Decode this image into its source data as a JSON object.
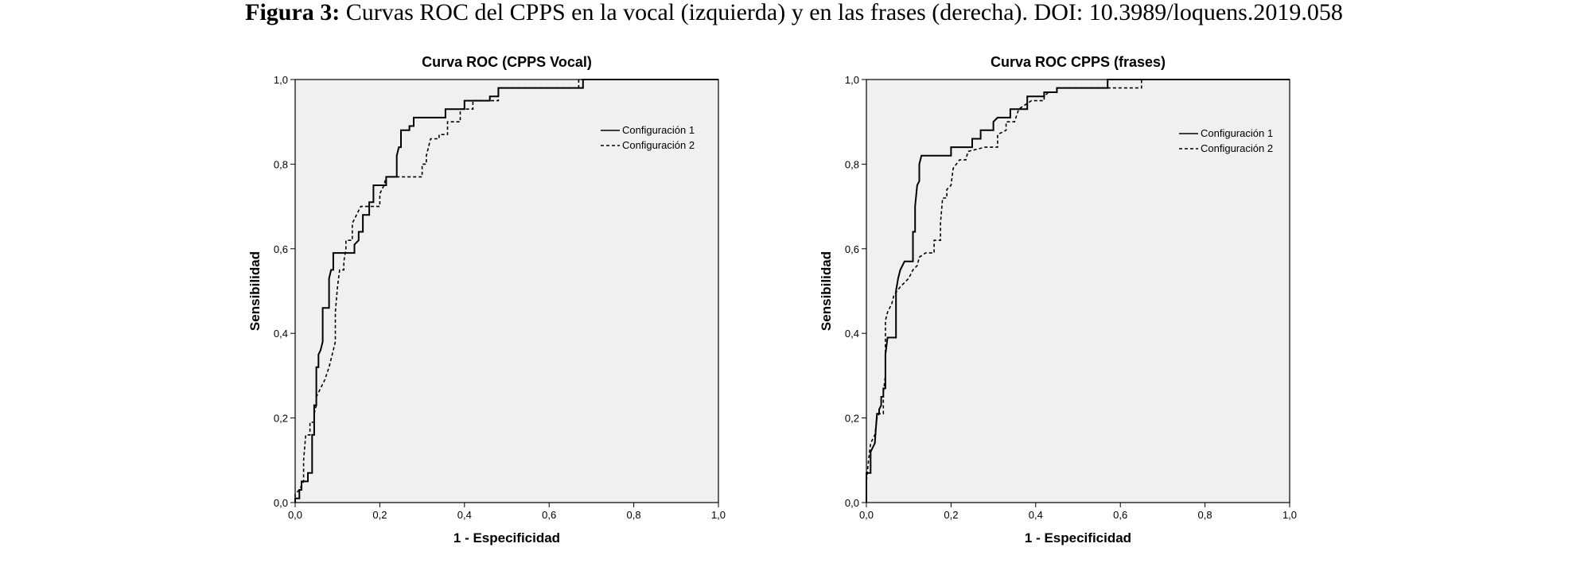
{
  "figure": {
    "label": "Figura 3:",
    "caption": "Curvas ROC del CPPS en la vocal (izquierda) y en las frases (derecha). DOI: 10.3989/loquens.2019.058"
  },
  "colors": {
    "plot_bg": "#f0f0f0",
    "line": "#000000",
    "frame": "#000000"
  },
  "chart_data": [
    {
      "type": "line",
      "title": "Curva ROC (CPPS Vocal)",
      "xlabel": "1 - Especificidad",
      "ylabel": "Sensibilidad",
      "xlim": [
        0,
        1
      ],
      "ylim": [
        0,
        1
      ],
      "xticks": [
        "0,0",
        "0,2",
        "0,4",
        "0,6",
        "0,8",
        "1,0"
      ],
      "yticks": [
        "0,0",
        "0,2",
        "0,4",
        "0,6",
        "0,8",
        "1,0"
      ],
      "grid": false,
      "legend_position": "top-right",
      "series": [
        {
          "name": "Configuración 1",
          "style": "solid",
          "points": [
            [
              0,
              0
            ],
            [
              0,
              0.01
            ],
            [
              0.01,
              0.01
            ],
            [
              0.01,
              0.03
            ],
            [
              0.015,
              0.03
            ],
            [
              0.015,
              0.05
            ],
            [
              0.03,
              0.05
            ],
            [
              0.03,
              0.07
            ],
            [
              0.04,
              0.07
            ],
            [
              0.04,
              0.16
            ],
            [
              0.045,
              0.16
            ],
            [
              0.045,
              0.23
            ],
            [
              0.05,
              0.23
            ],
            [
              0.05,
              0.32
            ],
            [
              0.055,
              0.32
            ],
            [
              0.055,
              0.35
            ],
            [
              0.06,
              0.36
            ],
            [
              0.065,
              0.38
            ],
            [
              0.065,
              0.46
            ],
            [
              0.08,
              0.46
            ],
            [
              0.08,
              0.53
            ],
            [
              0.085,
              0.55
            ],
            [
              0.09,
              0.55
            ],
            [
              0.09,
              0.59
            ],
            [
              0.14,
              0.59
            ],
            [
              0.14,
              0.61
            ],
            [
              0.15,
              0.62
            ],
            [
              0.15,
              0.64
            ],
            [
              0.16,
              0.64
            ],
            [
              0.16,
              0.68
            ],
            [
              0.175,
              0.68
            ],
            [
              0.175,
              0.71
            ],
            [
              0.185,
              0.71
            ],
            [
              0.185,
              0.75
            ],
            [
              0.215,
              0.75
            ],
            [
              0.215,
              0.77
            ],
            [
              0.24,
              0.77
            ],
            [
              0.24,
              0.82
            ],
            [
              0.245,
              0.84
            ],
            [
              0.25,
              0.84
            ],
            [
              0.25,
              0.88
            ],
            [
              0.27,
              0.88
            ],
            [
              0.27,
              0.89
            ],
            [
              0.28,
              0.89
            ],
            [
              0.28,
              0.91
            ],
            [
              0.355,
              0.91
            ],
            [
              0.355,
              0.93
            ],
            [
              0.4,
              0.93
            ],
            [
              0.4,
              0.95
            ],
            [
              0.46,
              0.95
            ],
            [
              0.46,
              0.96
            ],
            [
              0.48,
              0.96
            ],
            [
              0.48,
              0.98
            ],
            [
              0.68,
              0.98
            ],
            [
              0.68,
              1.0
            ],
            [
              1.0,
              1.0
            ]
          ]
        },
        {
          "name": "Configuración 2",
          "style": "dashed",
          "points": [
            [
              0,
              0
            ],
            [
              0,
              0.02
            ],
            [
              0.01,
              0.03
            ],
            [
              0.02,
              0.05
            ],
            [
              0.02,
              0.1
            ],
            [
              0.025,
              0.16
            ],
            [
              0.035,
              0.16
            ],
            [
              0.035,
              0.19
            ],
            [
              0.045,
              0.19
            ],
            [
              0.045,
              0.21
            ],
            [
              0.05,
              0.23
            ],
            [
              0.05,
              0.25
            ],
            [
              0.06,
              0.27
            ],
            [
              0.07,
              0.29
            ],
            [
              0.08,
              0.32
            ],
            [
              0.09,
              0.36
            ],
            [
              0.095,
              0.38
            ],
            [
              0.095,
              0.45
            ],
            [
              0.1,
              0.51
            ],
            [
              0.105,
              0.55
            ],
            [
              0.115,
              0.55
            ],
            [
              0.115,
              0.57
            ],
            [
              0.12,
              0.6
            ],
            [
              0.12,
              0.62
            ],
            [
              0.135,
              0.62
            ],
            [
              0.135,
              0.66
            ],
            [
              0.15,
              0.69
            ],
            [
              0.155,
              0.7
            ],
            [
              0.2,
              0.7
            ],
            [
              0.2,
              0.73
            ],
            [
              0.21,
              0.75
            ],
            [
              0.215,
              0.77
            ],
            [
              0.3,
              0.77
            ],
            [
              0.3,
              0.8
            ],
            [
              0.31,
              0.8
            ],
            [
              0.31,
              0.82
            ],
            [
              0.32,
              0.86
            ],
            [
              0.34,
              0.86
            ],
            [
              0.34,
              0.87
            ],
            [
              0.36,
              0.87
            ],
            [
              0.36,
              0.9
            ],
            [
              0.39,
              0.9
            ],
            [
              0.39,
              0.93
            ],
            [
              0.42,
              0.93
            ],
            [
              0.42,
              0.95
            ],
            [
              0.48,
              0.95
            ],
            [
              0.48,
              0.98
            ],
            [
              0.67,
              0.98
            ],
            [
              0.67,
              1.0
            ],
            [
              1.0,
              1.0
            ]
          ]
        }
      ]
    },
    {
      "type": "line",
      "title": "Curva ROC CPPS (frases)",
      "xlabel": "1 - Especificidad",
      "ylabel": "Sensibilidad",
      "xlim": [
        0,
        1
      ],
      "ylim": [
        0,
        1
      ],
      "xticks": [
        "0,0",
        "0,2",
        "0,4",
        "0,6",
        "0,8",
        "1,0"
      ],
      "yticks": [
        "0,0",
        "0,2",
        "0,4",
        "0,6",
        "0,8",
        "1,0"
      ],
      "grid": false,
      "legend_position": "top-right",
      "series": [
        {
          "name": "Configuración 1",
          "style": "solid",
          "points": [
            [
              0,
              0
            ],
            [
              0,
              0.07
            ],
            [
              0.01,
              0.07
            ],
            [
              0.01,
              0.12
            ],
            [
              0.02,
              0.14
            ],
            [
              0.025,
              0.21
            ],
            [
              0.03,
              0.21
            ],
            [
              0.03,
              0.22
            ],
            [
              0.035,
              0.23
            ],
            [
              0.035,
              0.25
            ],
            [
              0.04,
              0.25
            ],
            [
              0.04,
              0.27
            ],
            [
              0.045,
              0.27
            ],
            [
              0.045,
              0.35
            ],
            [
              0.05,
              0.39
            ],
            [
              0.07,
              0.39
            ],
            [
              0.07,
              0.5
            ],
            [
              0.075,
              0.53
            ],
            [
              0.08,
              0.55
            ],
            [
              0.09,
              0.57
            ],
            [
              0.11,
              0.57
            ],
            [
              0.11,
              0.64
            ],
            [
              0.115,
              0.64
            ],
            [
              0.115,
              0.7
            ],
            [
              0.12,
              0.75
            ],
            [
              0.125,
              0.76
            ],
            [
              0.125,
              0.8
            ],
            [
              0.13,
              0.82
            ],
            [
              0.2,
              0.82
            ],
            [
              0.2,
              0.84
            ],
            [
              0.25,
              0.84
            ],
            [
              0.25,
              0.86
            ],
            [
              0.27,
              0.86
            ],
            [
              0.27,
              0.88
            ],
            [
              0.3,
              0.88
            ],
            [
              0.3,
              0.9
            ],
            [
              0.31,
              0.91
            ],
            [
              0.34,
              0.91
            ],
            [
              0.34,
              0.93
            ],
            [
              0.38,
              0.93
            ],
            [
              0.38,
              0.96
            ],
            [
              0.42,
              0.96
            ],
            [
              0.42,
              0.97
            ],
            [
              0.45,
              0.97
            ],
            [
              0.45,
              0.98
            ],
            [
              0.57,
              0.98
            ],
            [
              0.57,
              1.0
            ],
            [
              1.0,
              1.0
            ]
          ]
        },
        {
          "name": "Configuración 2",
          "style": "dashed",
          "points": [
            [
              0,
              0
            ],
            [
              0,
              0.05
            ],
            [
              0.005,
              0.1
            ],
            [
              0.01,
              0.14
            ],
            [
              0.02,
              0.16
            ],
            [
              0.025,
              0.2
            ],
            [
              0.03,
              0.21
            ],
            [
              0.04,
              0.21
            ],
            [
              0.04,
              0.26
            ],
            [
              0.045,
              0.3
            ],
            [
              0.045,
              0.43
            ],
            [
              0.05,
              0.45
            ],
            [
              0.06,
              0.47
            ],
            [
              0.065,
              0.49
            ],
            [
              0.08,
              0.51
            ],
            [
              0.1,
              0.53
            ],
            [
              0.11,
              0.55
            ],
            [
              0.12,
              0.56
            ],
            [
              0.125,
              0.58
            ],
            [
              0.14,
              0.59
            ],
            [
              0.16,
              0.59
            ],
            [
              0.16,
              0.62
            ],
            [
              0.175,
              0.62
            ],
            [
              0.175,
              0.66
            ],
            [
              0.18,
              0.72
            ],
            [
              0.19,
              0.72
            ],
            [
              0.19,
              0.74
            ],
            [
              0.2,
              0.75
            ],
            [
              0.205,
              0.79
            ],
            [
              0.22,
              0.81
            ],
            [
              0.235,
              0.81
            ],
            [
              0.24,
              0.83
            ],
            [
              0.28,
              0.84
            ],
            [
              0.31,
              0.84
            ],
            [
              0.31,
              0.87
            ],
            [
              0.33,
              0.88
            ],
            [
              0.33,
              0.9
            ],
            [
              0.35,
              0.9
            ],
            [
              0.36,
              0.93
            ],
            [
              0.39,
              0.95
            ],
            [
              0.42,
              0.95
            ],
            [
              0.42,
              0.96
            ],
            [
              0.43,
              0.97
            ],
            [
              0.45,
              0.97
            ],
            [
              0.45,
              0.98
            ],
            [
              0.65,
              0.98
            ],
            [
              0.65,
              1.0
            ],
            [
              1.0,
              1.0
            ]
          ]
        }
      ]
    }
  ]
}
